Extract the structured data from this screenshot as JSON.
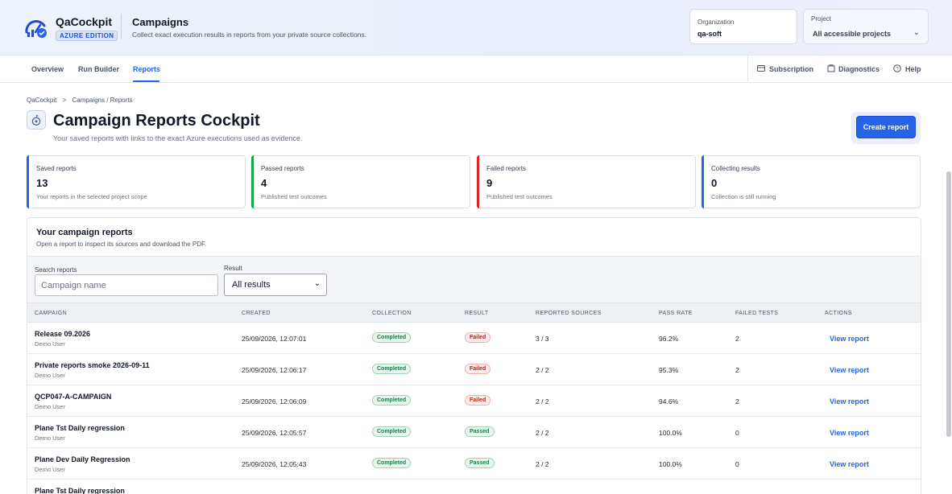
{
  "header": {
    "brand": "QaCockpit",
    "edition": "AZURE EDITION",
    "title": "Campaigns",
    "subtitle": "Collect exact execution results in reports from your private source collections.",
    "organization_label": "Organization",
    "organization_value": "qa-soft",
    "project_label": "Project",
    "project_value": "All accessible projects"
  },
  "nav": {
    "tabs": [
      "Overview",
      "Run Builder",
      "Reports"
    ],
    "active_tab": "Reports",
    "right": [
      "Subscription",
      "Diagnostics",
      "Help"
    ]
  },
  "page": {
    "breadcrumb_root": "QaCockpit",
    "breadcrumb_sep": ">",
    "breadcrumb_path": "Campaigns / Reports",
    "title": "Campaign Reports Cockpit",
    "subtitle": "Your saved reports with links to the exact Azure executions used as evidence.",
    "create_button": "Create report"
  },
  "stats": [
    {
      "label": "Saved reports",
      "value": "13",
      "desc": "Your reports in the selected project scope",
      "color": "#2563eb"
    },
    {
      "label": "Passed reports",
      "value": "4",
      "desc": "Published test outcomes",
      "color": "#16a34a"
    },
    {
      "label": "Failed reports",
      "value": "9",
      "desc": "Published test outcomes",
      "color": "#dc2626"
    },
    {
      "label": "Collecting results",
      "value": "0",
      "desc": "Collection is still running",
      "color": "#2563eb"
    }
  ],
  "panel": {
    "title": "Your campaign reports",
    "subtitle": "Open a report to inspect its sources and download the PDF.",
    "search_label": "Search reports",
    "search_placeholder": "Campaign name",
    "result_label": "Result",
    "result_value": "All results"
  },
  "table": {
    "headers": [
      "CAMPAIGN",
      "CREATED",
      "COLLECTION",
      "RESULT",
      "REPORTED SOURCES",
      "PASS RATE",
      "FAILED TESTS",
      "ACTIONS"
    ],
    "rows": [
      {
        "name": "Release 09.2026",
        "user": "Demo User",
        "created": "25/09/2026, 12:07:01",
        "collection": "Completed",
        "result": "Failed",
        "sources": "3 / 3",
        "pass_rate": "96.2%",
        "failed": "2",
        "action": "View report"
      },
      {
        "name": "Private reports smoke 2026-09-11",
        "user": "Demo User",
        "created": "25/09/2026, 12:06:17",
        "collection": "Completed",
        "result": "Failed",
        "sources": "2 / 2",
        "pass_rate": "95.3%",
        "failed": "2",
        "action": "View report"
      },
      {
        "name": "QCP047-A-CAMPAIGN",
        "user": "Demo User",
        "created": "25/09/2026, 12:06:09",
        "collection": "Completed",
        "result": "Failed",
        "sources": "2 / 2",
        "pass_rate": "94.6%",
        "failed": "2",
        "action": "View report"
      },
      {
        "name": "Plane Tst Daily regression",
        "user": "Demo User",
        "created": "25/09/2026, 12:05:57",
        "collection": "Completed",
        "result": "Passed",
        "sources": "2 / 2",
        "pass_rate": "100.0%",
        "failed": "0",
        "action": "View report"
      },
      {
        "name": "Plane Dev Daily Regression",
        "user": "Demo User",
        "created": "25/09/2026, 12:05:43",
        "collection": "Completed",
        "result": "Passed",
        "sources": "2 / 2",
        "pass_rate": "100.0%",
        "failed": "0",
        "action": "View report"
      },
      {
        "name": "Plane Tst Daily regression",
        "user": "",
        "created": "",
        "collection": "",
        "result": "",
        "sources": "",
        "pass_rate": "",
        "failed": "",
        "action": ""
      }
    ]
  }
}
